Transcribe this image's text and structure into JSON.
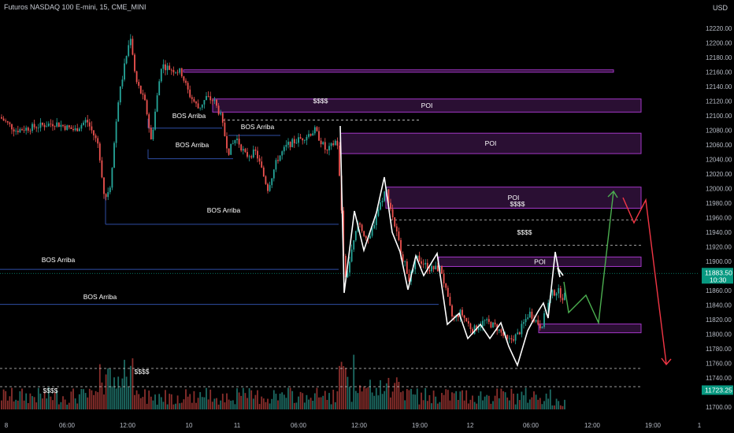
{
  "header": {
    "title": "Futuros NASDAQ 100 E-mini, 15, CME_MINI",
    "currency": "USD"
  },
  "price_badges": {
    "current": "11883.50",
    "countdown": "10:30",
    "low": "11723.25"
  },
  "annotations": {
    "poi": "POI",
    "liquidity": "$$$$",
    "bos": "BOS Arriba"
  },
  "chart_data": {
    "type": "candlestick",
    "y_axis_ticks": [
      12220,
      12200,
      12180,
      12160,
      12140,
      12120,
      12100,
      12080,
      12060,
      12040,
      12020,
      12000,
      11980,
      11960,
      11940,
      11920,
      11900,
      11880,
      11860,
      11840,
      11820,
      11800,
      11780,
      11760,
      11740,
      11720,
      11700
    ],
    "x_axis_ticks": [
      "06:00",
      "12:00",
      "10",
      "11",
      "06:00",
      "12:00",
      "19:00",
      "12",
      "06:00",
      "12:00",
      "19:00",
      "1"
    ],
    "ylim": [
      11690,
      12230
    ],
    "current_price": 11883.5,
    "poi_zones": [
      {
        "label": "POI",
        "from": 12105,
        "to": 12123
      },
      {
        "label": "POI",
        "from": 12048,
        "to": 12076
      },
      {
        "label": "POI",
        "from": 11973,
        "to": 12002
      },
      {
        "label": "POI",
        "from": 11893,
        "to": 11906
      },
      {
        "label": "",
        "from": 11802,
        "to": 11814
      },
      {
        "label": "",
        "from": 12160,
        "to": 12163
      }
    ],
    "liquidity_levels": [
      12094,
      11957,
      11922,
      11753,
      11728
    ],
    "bos_levels": [
      12083,
      12073,
      12041,
      11951,
      11889,
      11841
    ],
    "colors": {
      "bull": "#26a69a",
      "bear": "#ef5350",
      "poi_fill": "#2a0f33",
      "poi_stroke": "#a437c8",
      "bos_line": "#2f4ea5",
      "projection_up": "#4caf50",
      "projection_down": "#f23645",
      "accent": "#089981"
    }
  }
}
